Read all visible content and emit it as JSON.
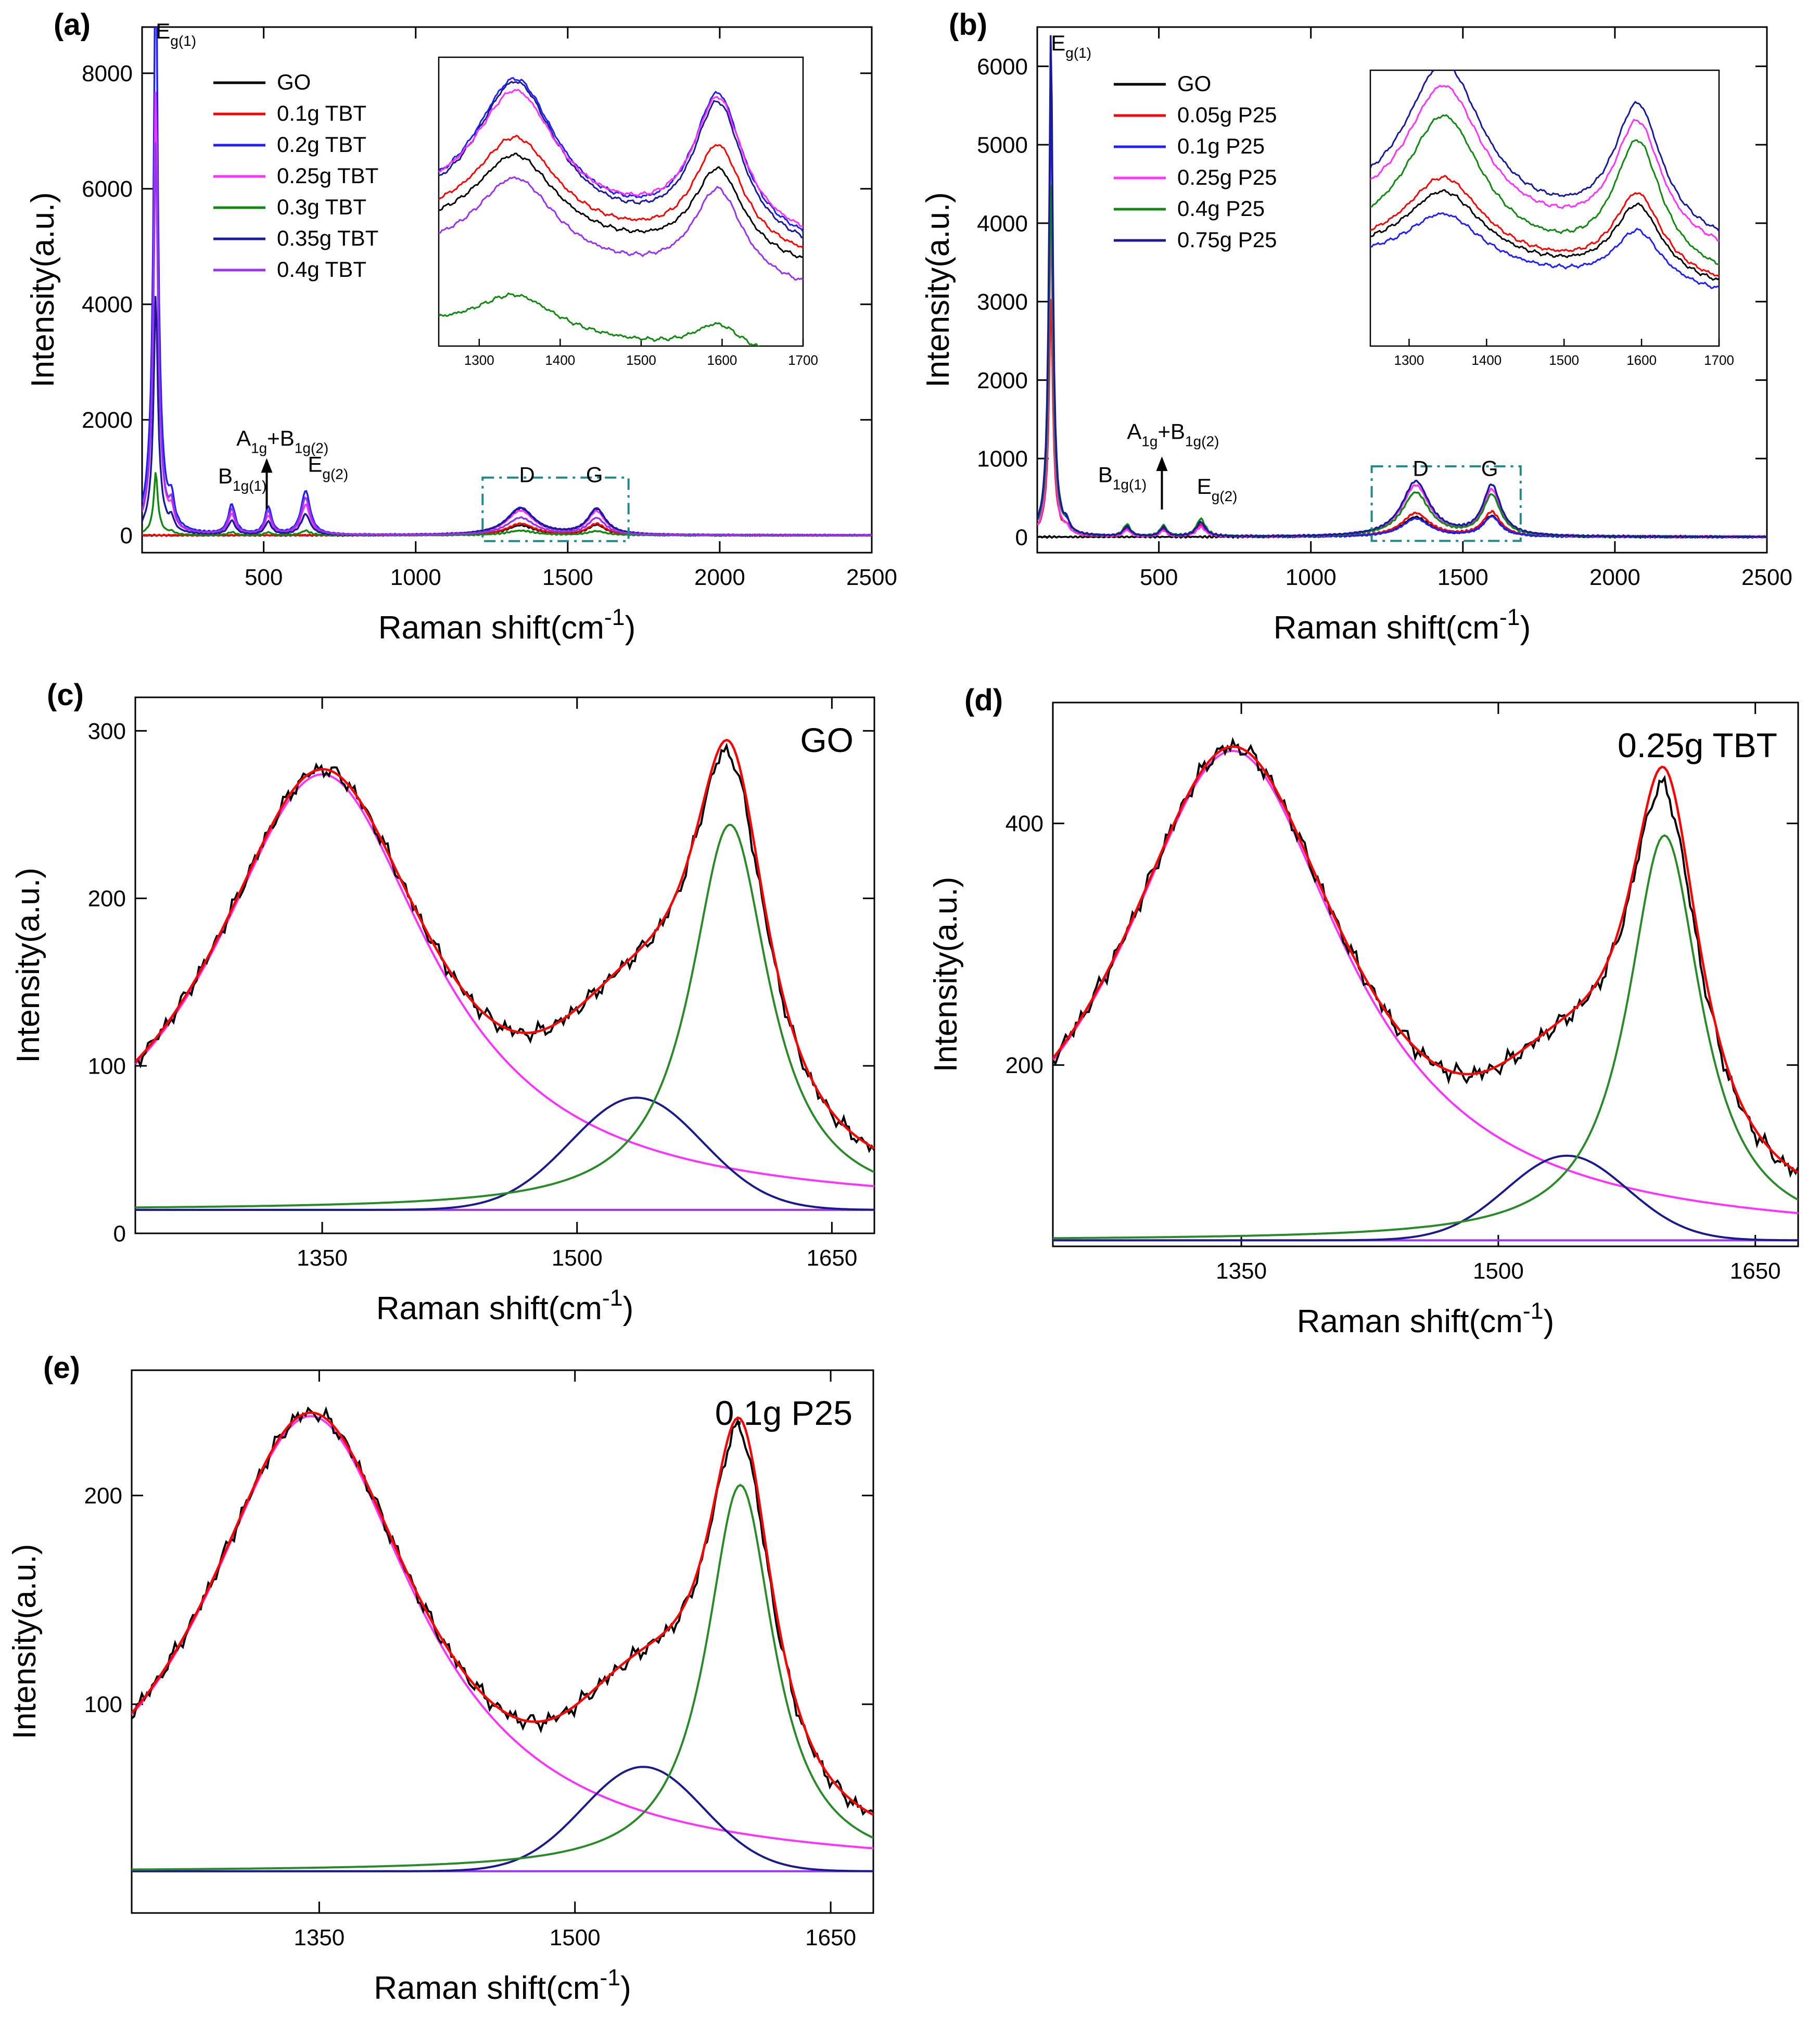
{
  "colors": {
    "GO": "#000000",
    "red": "#ff0000",
    "blue": "#1f1fff",
    "magenta": "#ff33ff",
    "green": "#118811",
    "navy": "#1a1a99",
    "violet": "#9933ee",
    "fit_red": "#ff0000",
    "fit_magenta": "#ff33ff",
    "fit_navy": "#1a1a8a",
    "fit_green": "#2a8a2a",
    "fit_base": "#9933ff",
    "inset_box": "#228888"
  },
  "chart_data": [
    {
      "panel": "(a)",
      "type": "line",
      "xlabel_main": "Raman shift(cm",
      "xlabel_sup": "-1",
      "xlabel_close": ")",
      "ylabel": "Intensity(a.u.)",
      "xlim": [
        100,
        2500
      ],
      "ylim": [
        -300,
        8800
      ],
      "xticks": [
        "500",
        "1000",
        "1500",
        "2000",
        "2500"
      ],
      "xtick_values": [
        500,
        1000,
        1500,
        2000,
        2500
      ],
      "yticks": [
        "0",
        "2000",
        "4000",
        "6000",
        "8000"
      ],
      "ytick_values": [
        0,
        2000,
        4000,
        6000,
        8000
      ],
      "series": [
        {
          "name": "GO",
          "color_key": "GO",
          "eg1": 0,
          "bulk": 0,
          "d": 170,
          "g": 175
        },
        {
          "name": "0.1g TBT",
          "color_key": "red",
          "eg1": 0,
          "bulk": 0,
          "d": 200,
          "g": 195
        },
        {
          "name": "0.2g TBT",
          "color_key": "blue",
          "eg1": 8800,
          "bulk": 1900,
          "d": 470,
          "g": 450
        },
        {
          "name": "0.25g TBT",
          "color_key": "magenta",
          "eg1": 6500,
          "bulk": 1300,
          "d": 420,
          "g": 400
        },
        {
          "name": "0.3g TBT",
          "color_key": "green",
          "eg1": 900,
          "bulk": 200,
          "d": 80,
          "g": 70
        },
        {
          "name": "0.35g TBT",
          "color_key": "navy",
          "eg1": 3300,
          "bulk": 900,
          "d": 460,
          "g": 440
        },
        {
          "name": "0.4g TBT",
          "color_key": "violet",
          "eg1": 5300,
          "bulk": 1600,
          "d": 300,
          "g": 290
        }
      ],
      "peak_labels": [
        {
          "base": "E",
          "sub": "g(1)",
          "sup": "",
          "x": 145,
          "y": 8600
        },
        {
          "base": "B",
          "sub": "1g(1)",
          "sup": "",
          "x": 350,
          "y": 900
        },
        {
          "base": "A",
          "sub": "1g",
          "sup": "",
          "extra": "+B",
          "sub2": "1g(2)",
          "x": 410,
          "y": 1550
        },
        {
          "base": "E",
          "sub": "g(2)",
          "sup": "",
          "x": 645,
          "y": 1100
        },
        {
          "base": "D",
          "sub": "",
          "sup": "",
          "x": 1340,
          "y": 920
        },
        {
          "base": "G",
          "sub": "",
          "sup": "",
          "x": 1560,
          "y": 920
        }
      ],
      "arrow": {
        "x": 510,
        "y0": 450,
        "y1": 1300
      },
      "zoom_box": [
        1220,
        1700,
        -100,
        1000
      ],
      "legend": [
        "GO",
        "0.1g TBT",
        "0.2g TBT",
        "0.25g TBT",
        "0.3g TBT",
        "0.35g TBT",
        "0.4g TBT"
      ],
      "inset": {
        "xlim": [
          1250,
          1700
        ],
        "ylim": [
          0,
          1.0
        ],
        "xticks": [
          "1300",
          "1400",
          "1500",
          "1600",
          "1700"
        ],
        "xtick_values": [
          1300,
          1400,
          1500,
          1600,
          1700
        ],
        "series": [
          {
            "color_key": "blue",
            "base": 0.45,
            "d": 0.49,
            "g": 0.49
          },
          {
            "color_key": "navy",
            "base": 0.43,
            "d": 0.5,
            "g": 0.48
          },
          {
            "color_key": "magenta",
            "base": 0.47,
            "d": 0.43,
            "g": 0.46
          },
          {
            "color_key": "red",
            "base": 0.41,
            "d": 0.33,
            "g": 0.36
          },
          {
            "color_key": "GO",
            "base": 0.38,
            "d": 0.3,
            "g": 0.31
          },
          {
            "color_key": "violet",
            "base": 0.3,
            "d": 0.3,
            "g": 0.32
          },
          {
            "color_key": "green",
            "base": 0.06,
            "d": 0.14,
            "g": 0.1
          }
        ]
      }
    },
    {
      "panel": "(b)",
      "type": "line",
      "xlabel_main": "Raman shift(cm",
      "xlabel_sup": "-1",
      "xlabel_close": ")",
      "ylabel": "Intensity(a.u.)",
      "xlim": [
        100,
        2500
      ],
      "ylim": [
        -200,
        6500
      ],
      "xticks": [
        "500",
        "1000",
        "1500",
        "2000",
        "2500"
      ],
      "xtick_values": [
        500,
        1000,
        1500,
        2000,
        2500
      ],
      "yticks": [
        "0",
        "1000",
        "2000",
        "3000",
        "4000",
        "5000",
        "6000"
      ],
      "ytick_values": [
        0,
        1000,
        2000,
        3000,
        4000,
        5000,
        6000
      ],
      "series": [
        {
          "name": "GO",
          "color_key": "GO",
          "eg1": 0,
          "bulk": 0,
          "d": 250,
          "g": 260
        },
        {
          "name": "0.05g P25",
          "color_key": "red",
          "eg1": 2700,
          "bulk": 380,
          "d": 300,
          "g": 310
        },
        {
          "name": "0.1g P25",
          "color_key": "blue",
          "eg1": 5200,
          "bulk": 450,
          "d": 230,
          "g": 250
        },
        {
          "name": "0.25g P25",
          "color_key": "magenta",
          "eg1": 3800,
          "bulk": 300,
          "d": 650,
          "g": 580
        },
        {
          "name": "0.4g P25",
          "color_key": "green",
          "eg1": 4000,
          "bulk": 560,
          "d": 560,
          "g": 520
        },
        {
          "name": "0.75g P25",
          "color_key": "navy",
          "eg1": 6050,
          "bulk": 460,
          "d": 700,
          "g": 640
        }
      ],
      "peak_labels": [
        {
          "base": "E",
          "sub": "g(1)",
          "sup": "",
          "x": 145,
          "y": 6200
        },
        {
          "base": "B",
          "sub": "1g(1)",
          "sup": "",
          "x": 300,
          "y": 700
        },
        {
          "base": "A",
          "sub": "1g",
          "sup": "",
          "extra": "+B",
          "sub2": "1g(2)",
          "x": 395,
          "y": 1250
        },
        {
          "base": "E",
          "sub": "g(2)",
          "sup": "",
          "x": 625,
          "y": 550
        },
        {
          "base": "D",
          "sub": "",
          "sup": "",
          "x": 1335,
          "y": 780
        },
        {
          "base": "G",
          "sub": "",
          "sup": "",
          "x": 1560,
          "y": 780
        }
      ],
      "arrow": {
        "x": 510,
        "y0": 350,
        "y1": 1000
      },
      "zoom_box": [
        1200,
        1690,
        -50,
        900
      ],
      "legend": [
        "GO",
        "0.05g P25",
        "0.1g P25",
        "0.25g P25",
        "0.4g P25",
        "0.75g P25"
      ],
      "inset": {
        "xlim": [
          1250,
          1700
        ],
        "ylim": [
          0,
          1.0
        ],
        "xticks": [
          "1300",
          "1400",
          "1500",
          "1600",
          "1700"
        ],
        "xtick_values": [
          1300,
          1400,
          1500,
          1600,
          1700
        ],
        "series": [
          {
            "color_key": "navy",
            "base": 0.47,
            "d": 0.57,
            "g": 0.47
          },
          {
            "color_key": "magenta",
            "base": 0.44,
            "d": 0.52,
            "g": 0.44
          },
          {
            "color_key": "green",
            "base": 0.35,
            "d": 0.5,
            "g": 0.46
          },
          {
            "color_key": "red",
            "base": 0.33,
            "d": 0.3,
            "g": 0.3
          },
          {
            "color_key": "GO",
            "base": 0.32,
            "d": 0.26,
            "g": 0.27
          },
          {
            "color_key": "blue",
            "base": 0.3,
            "d": 0.2,
            "g": 0.2
          }
        ]
      }
    },
    {
      "panel": "(c)",
      "type": "line",
      "sample": "GO",
      "xlabel_main": "Raman shift(cm",
      "xlabel_sup": "-1",
      "xlabel_close": ")",
      "ylabel": "Intensity(a.u.)",
      "xlim": [
        1240,
        1675
      ],
      "ylim": [
        0,
        320
      ],
      "xticks": [
        "1350",
        "1500",
        "1650"
      ],
      "xtick_values": [
        1350,
        1500,
        1650
      ],
      "yticks": [
        "0",
        "100",
        "200",
        "300"
      ],
      "ytick_values": [
        0,
        100,
        200,
        300
      ],
      "fit": {
        "baseline": 14,
        "d_amp": 260,
        "d_center": 1350,
        "d_hwhm": 78,
        "d3_amp": 67,
        "d3_center": 1535,
        "d3_hwhm": 55,
        "g_amp": 230,
        "g_center": 1590,
        "g_hwhm": 28,
        "noise_offset": -8
      }
    },
    {
      "panel": "(d)",
      "type": "line",
      "sample": "0.25g TBT",
      "xlabel_main": "Raman shift(cm",
      "xlabel_sup": "-1",
      "xlabel_close": ")",
      "ylabel": "Intensity(a.u.)",
      "xlim": [
        1240,
        1675
      ],
      "ylim": [
        50,
        500
      ],
      "xticks": [
        "1350",
        "1500",
        "1650"
      ],
      "xtick_values": [
        1350,
        1500,
        1650
      ],
      "yticks": [
        "200",
        "400"
      ],
      "ytick_values": [
        200,
        400
      ],
      "fit": {
        "baseline": 55,
        "d_amp": 405,
        "d_center": 1345,
        "d_hwhm": 80,
        "d3_amp": 70,
        "d3_center": 1540,
        "d3_hwhm": 50,
        "g_amp": 335,
        "g_center": 1597,
        "g_hwhm": 26,
        "noise_offset": -18
      }
    },
    {
      "panel": "(e)",
      "type": "line",
      "sample": "0.1g P25",
      "xlabel_main": "Raman shift(cm",
      "xlabel_sup": "-1",
      "xlabel_close": ")",
      "ylabel": "Intensity(a.u.)",
      "xlim": [
        1240,
        1675
      ],
      "ylim": [
        0,
        260
      ],
      "xticks": [
        "1350",
        "1500",
        "1650"
      ],
      "xtick_values": [
        1350,
        1500,
        1650
      ],
      "yticks": [
        "100",
        "200"
      ],
      "ytick_values": [
        100,
        200
      ],
      "fit": {
        "baseline": 20,
        "d_amp": 218,
        "d_center": 1345,
        "d_hwhm": 76,
        "d3_amp": 50,
        "d3_center": 1540,
        "d3_hwhm": 50,
        "g_amp": 185,
        "g_center": 1597,
        "g_hwhm": 24,
        "noise_offset": -6
      }
    }
  ]
}
